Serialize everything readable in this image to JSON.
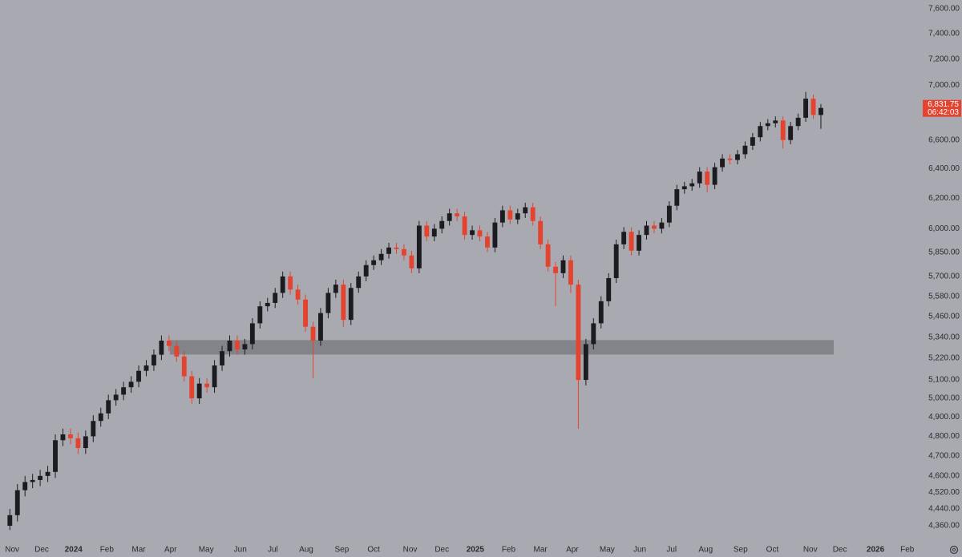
{
  "chart_data": {
    "type": "candlestick",
    "log_scale": true,
    "grid": false,
    "up_color": "#1c1c20",
    "down_color": "#e4432f",
    "open": [
      4360,
      4410,
      4530,
      4570,
      4580,
      4600,
      4620,
      4780,
      4810,
      4790,
      4740,
      4800,
      4880,
      4920,
      4990,
      5020,
      5060,
      5090,
      5150,
      5180,
      5240,
      5320,
      5290,
      5230,
      5120,
      5000,
      5080,
      5060,
      5180,
      5260,
      5320,
      5270,
      5300,
      5420,
      5520,
      5540,
      5600,
      5700,
      5620,
      5560,
      5400,
      5320,
      5480,
      5600,
      5650,
      5440,
      5630,
      5700,
      5770,
      5800,
      5840,
      5880,
      5870,
      5830,
      5750,
      6020,
      5950,
      6000,
      6050,
      6100,
      6080,
      5960,
      5990,
      5950,
      5880,
      6040,
      6120,
      6060,
      6100,
      6140,
      6050,
      5900,
      5760,
      5720,
      5800,
      5650,
      5100,
      5300,
      5420,
      5550,
      5690,
      5900,
      5980,
      5860,
      5960,
      6020,
      6000,
      6040,
      6150,
      6260,
      6280,
      6300,
      6380,
      6290,
      6410,
      6470,
      6460,
      6500,
      6560,
      6620,
      6700,
      6720,
      6740,
      6600,
      6700,
      6760,
      6900,
      6780
    ],
    "high": [
      4440,
      4560,
      4600,
      4610,
      4630,
      4650,
      4810,
      4840,
      4840,
      4820,
      4830,
      4910,
      4950,
      5020,
      5050,
      5090,
      5120,
      5180,
      5210,
      5270,
      5350,
      5350,
      5320,
      5260,
      5150,
      5110,
      5110,
      5210,
      5290,
      5350,
      5350,
      5330,
      5450,
      5550,
      5570,
      5630,
      5730,
      5730,
      5650,
      5590,
      5430,
      5510,
      5630,
      5680,
      5680,
      5660,
      5730,
      5800,
      5830,
      5870,
      5910,
      5910,
      5900,
      5860,
      6050,
      6050,
      6030,
      6080,
      6130,
      6130,
      6110,
      6020,
      6020,
      5980,
      6070,
      6150,
      6150,
      6130,
      6170,
      6170,
      6080,
      5930,
      5790,
      5830,
      5830,
      5680,
      5330,
      5450,
      5580,
      5720,
      5930,
      6010,
      6010,
      5990,
      6050,
      6050,
      6070,
      6180,
      6290,
      6310,
      6330,
      6410,
      6410,
      6440,
      6500,
      6500,
      6530,
      6590,
      6650,
      6730,
      6750,
      6770,
      6770,
      6730,
      6790,
      6950,
      6930,
      6860
    ],
    "low": [
      4340,
      4380,
      4500,
      4540,
      4550,
      4570,
      4590,
      4750,
      4760,
      4710,
      4710,
      4770,
      4850,
      4890,
      4960,
      4990,
      5030,
      5060,
      5120,
      5150,
      5210,
      5260,
      5200,
      5090,
      4970,
      4970,
      5030,
      5030,
      5150,
      5230,
      5240,
      5240,
      5270,
      5390,
      5490,
      5510,
      5570,
      5590,
      5530,
      5370,
      5110,
      5290,
      5450,
      5570,
      5400,
      5410,
      5600,
      5670,
      5740,
      5770,
      5810,
      5840,
      5800,
      5720,
      5720,
      5920,
      5920,
      5970,
      6020,
      6050,
      5930,
      5930,
      5920,
      5850,
      5850,
      6010,
      6030,
      6030,
      6070,
      6020,
      5870,
      5730,
      5520,
      5690,
      5600,
      4840,
      5070,
      5270,
      5390,
      5520,
      5660,
      5870,
      5830,
      5830,
      5930,
      5970,
      5970,
      6010,
      6120,
      6230,
      6250,
      6270,
      6240,
      6260,
      6380,
      6430,
      6430,
      6470,
      6530,
      6590,
      6670,
      6690,
      6540,
      6570,
      6670,
      6730,
      6750,
      6680
    ],
    "close": [
      4410,
      4530,
      4570,
      4580,
      4600,
      4620,
      4780,
      4810,
      4790,
      4740,
      4800,
      4880,
      4920,
      4990,
      5020,
      5060,
      5090,
      5150,
      5180,
      5240,
      5320,
      5290,
      5230,
      5120,
      5000,
      5080,
      5060,
      5180,
      5260,
      5320,
      5270,
      5300,
      5420,
      5520,
      5540,
      5600,
      5700,
      5620,
      5560,
      5400,
      5320,
      5480,
      5600,
      5650,
      5440,
      5630,
      5700,
      5770,
      5800,
      5840,
      5880,
      5870,
      5830,
      5750,
      6020,
      5950,
      6000,
      6050,
      6100,
      6080,
      5960,
      5990,
      5950,
      5880,
      6040,
      6120,
      6060,
      6100,
      6140,
      6050,
      5900,
      5760,
      5720,
      5800,
      5650,
      5100,
      5300,
      5420,
      5550,
      5690,
      5900,
      5980,
      5860,
      5960,
      6020,
      6000,
      6040,
      6150,
      6260,
      6280,
      6300,
      6380,
      6290,
      6410,
      6470,
      6460,
      6500,
      6560,
      6620,
      6700,
      6720,
      6740,
      6600,
      6700,
      6760,
      6900,
      6780,
      6831.75
    ],
    "xlim": [
      -1.3,
      119.8
    ],
    "xticks": [
      {
        "value": 0.3,
        "label": "Nov"
      },
      {
        "value": 4.2,
        "label": "Dec"
      },
      {
        "value": 8.4,
        "label": "2024"
      },
      {
        "value": 12.8,
        "label": "Feb"
      },
      {
        "value": 17.0,
        "label": "Mar"
      },
      {
        "value": 21.2,
        "label": "Apr"
      },
      {
        "value": 25.9,
        "label": "May"
      },
      {
        "value": 30.4,
        "label": "Jun"
      },
      {
        "value": 34.7,
        "label": "Jul"
      },
      {
        "value": 39.1,
        "label": "Aug"
      },
      {
        "value": 43.8,
        "label": "Sep"
      },
      {
        "value": 48.0,
        "label": "Oct"
      },
      {
        "value": 52.8,
        "label": "Nov"
      },
      {
        "value": 57.0,
        "label": "Dec"
      },
      {
        "value": 61.4,
        "label": "2025"
      },
      {
        "value": 65.8,
        "label": "Feb"
      },
      {
        "value": 70.0,
        "label": "Mar"
      },
      {
        "value": 74.2,
        "label": "Apr"
      },
      {
        "value": 78.8,
        "label": "May"
      },
      {
        "value": 83.1,
        "label": "Jun"
      },
      {
        "value": 87.3,
        "label": "Jul"
      },
      {
        "value": 91.8,
        "label": "Aug"
      },
      {
        "value": 96.4,
        "label": "Sep"
      },
      {
        "value": 100.6,
        "label": "Oct"
      },
      {
        "value": 105.6,
        "label": "Nov"
      },
      {
        "value": 109.5,
        "label": "Dec"
      },
      {
        "value": 114.2,
        "label": "2026"
      },
      {
        "value": 118.4,
        "label": "Feb"
      }
    ],
    "ylim": [
      4271,
      7672
    ],
    "yticks": [
      {
        "value": 4360,
        "label": "4,360.00"
      },
      {
        "value": 4440,
        "label": "4,440.00"
      },
      {
        "value": 4520,
        "label": "4,520.00"
      },
      {
        "value": 4600,
        "label": "4,600.00"
      },
      {
        "value": 4700,
        "label": "4,700.00"
      },
      {
        "value": 4800,
        "label": "4,800.00"
      },
      {
        "value": 4900,
        "label": "4,900.00"
      },
      {
        "value": 5000,
        "label": "5,000.00"
      },
      {
        "value": 5100,
        "label": "5,100.00"
      },
      {
        "value": 5220,
        "label": "5,220.00"
      },
      {
        "value": 5340,
        "label": "5,340.00"
      },
      {
        "value": 5460,
        "label": "5,460.00"
      },
      {
        "value": 5580,
        "label": "5,580.00"
      },
      {
        "value": 5700,
        "label": "5,700.00"
      },
      {
        "value": 5850,
        "label": "5,850.00"
      },
      {
        "value": 6000,
        "label": "6,000.00"
      },
      {
        "value": 6200,
        "label": "6,200.00"
      },
      {
        "value": 6400,
        "label": "6,400.00"
      },
      {
        "value": 6600,
        "label": "6,600.00"
      },
      {
        "value": 7000,
        "label": "7,000.00"
      },
      {
        "value": 7200,
        "label": "7,200.00"
      },
      {
        "value": 7400,
        "label": "7,400.00"
      },
      {
        "value": 7600,
        "label": "7,600.00"
      }
    ],
    "zone": {
      "low": 5241,
      "high": 5323,
      "start": 21.1,
      "end": 108.7,
      "color": "#7d7e84"
    },
    "last_price": {
      "value": 6831.75,
      "label": "6,831.75"
    },
    "countdown": "06:42:03"
  }
}
